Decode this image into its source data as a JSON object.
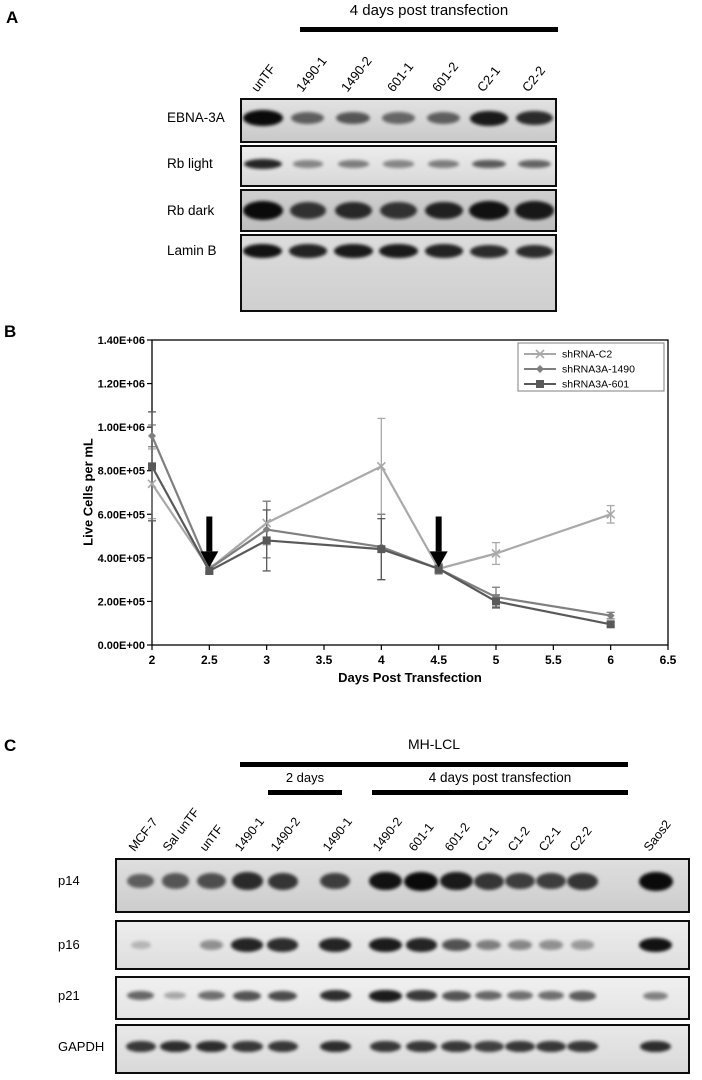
{
  "figure": {
    "panelA": {
      "label": "A",
      "header": "4 days post transfection",
      "lanes": [
        "unTF",
        "1490-1",
        "1490-2",
        "601-1",
        "601-2",
        "C2-1",
        "C2-2"
      ],
      "blots": [
        {
          "label": "EBNA-3A",
          "bands": [
            1.0,
            0.5,
            0.55,
            0.45,
            0.5,
            0.9,
            0.8
          ]
        },
        {
          "label": "Rb light",
          "bands": [
            0.85,
            0.3,
            0.35,
            0.3,
            0.35,
            0.55,
            0.5
          ]
        },
        {
          "label": "Rb dark",
          "bands": [
            1.0,
            0.75,
            0.8,
            0.75,
            0.85,
            0.95,
            0.9
          ]
        },
        {
          "label": "Lamin B",
          "bands": [
            0.95,
            0.85,
            0.9,
            0.9,
            0.85,
            0.8,
            0.8
          ]
        }
      ]
    },
    "panelB": {
      "label": "B"
    },
    "panelC": {
      "label": "C",
      "header_top": "MH-LCL",
      "header_2days": "2 days",
      "header_4days": "4 days post transfection",
      "lanes": [
        "MCF-7",
        "Sal unTF",
        "unTF",
        "1490-1",
        "1490-2",
        "1490-1",
        "1490-2",
        "601-1",
        "601-2",
        "C1-1",
        "C1-2",
        "C2-1",
        "C2-2",
        "Saos2"
      ],
      "blots": [
        {
          "label": "p14",
          "bands": [
            0.5,
            0.55,
            0.6,
            0.8,
            0.75,
            0.7,
            0.95,
            1.0,
            0.9,
            0.75,
            0.7,
            0.7,
            0.75,
            1.0
          ]
        },
        {
          "label": "p16",
          "bands": [
            0.05,
            0.0,
            0.25,
            0.85,
            0.8,
            0.85,
            0.9,
            0.85,
            0.6,
            0.35,
            0.3,
            0.25,
            0.2,
            0.95
          ]
        },
        {
          "label": "p21",
          "bands": [
            0.5,
            0.15,
            0.45,
            0.6,
            0.65,
            0.8,
            0.9,
            0.75,
            0.6,
            0.5,
            0.45,
            0.45,
            0.55,
            0.35
          ]
        },
        {
          "label": "GAPDH",
          "bands": [
            0.75,
            0.8,
            0.8,
            0.75,
            0.75,
            0.8,
            0.75,
            0.75,
            0.75,
            0.7,
            0.75,
            0.75,
            0.75,
            0.8
          ]
        }
      ]
    }
  },
  "chart_data": {
    "type": "line",
    "title": "",
    "xlabel": "Days Post Transfection",
    "ylabel": "Live Cells per mL",
    "xlim": [
      2,
      6.5
    ],
    "ylim": [
      0,
      1400000
    ],
    "grid": false,
    "legend_position": "top-right",
    "x_ticks": [
      "2",
      "2.5",
      "3",
      "3.5",
      "4",
      "4.5",
      "5",
      "5.5",
      "6",
      "6.5"
    ],
    "y_ticks": [
      "0.00E+00",
      "2.00E+05",
      "4.00E+05",
      "6.00E+05",
      "8.00E+05",
      "1.00E+06",
      "1.20E+06",
      "1.40E+06"
    ],
    "x": [
      2,
      2.5,
      3,
      4,
      4.5,
      5,
      6
    ],
    "series": [
      {
        "name": "shRNA-C2",
        "marker": "x",
        "color": "#a9a9a9",
        "values": [
          740000,
          350000,
          560000,
          820000,
          350000,
          420000,
          600000
        ],
        "errors": [
          160000,
          15000,
          100000,
          220000,
          25000,
          50000,
          40000
        ]
      },
      {
        "name": "shRNA3A-1490",
        "marker": "diamond",
        "color": "#7f7f7f",
        "values": [
          960000,
          350000,
          530000,
          450000,
          350000,
          220000,
          135000
        ],
        "errors": [
          50000,
          15000,
          130000,
          150000,
          20000,
          45000,
          15000
        ]
      },
      {
        "name": "shRNA3A-601",
        "marker": "square",
        "color": "#595959",
        "values": [
          820000,
          340000,
          480000,
          440000,
          350000,
          200000,
          95000
        ],
        "errors": [
          250000,
          15000,
          140000,
          140000,
          20000,
          30000,
          10000
        ]
      }
    ],
    "annotations": [
      {
        "type": "arrow-down",
        "x": 2.5
      },
      {
        "type": "arrow-down",
        "x": 4.5
      }
    ]
  }
}
